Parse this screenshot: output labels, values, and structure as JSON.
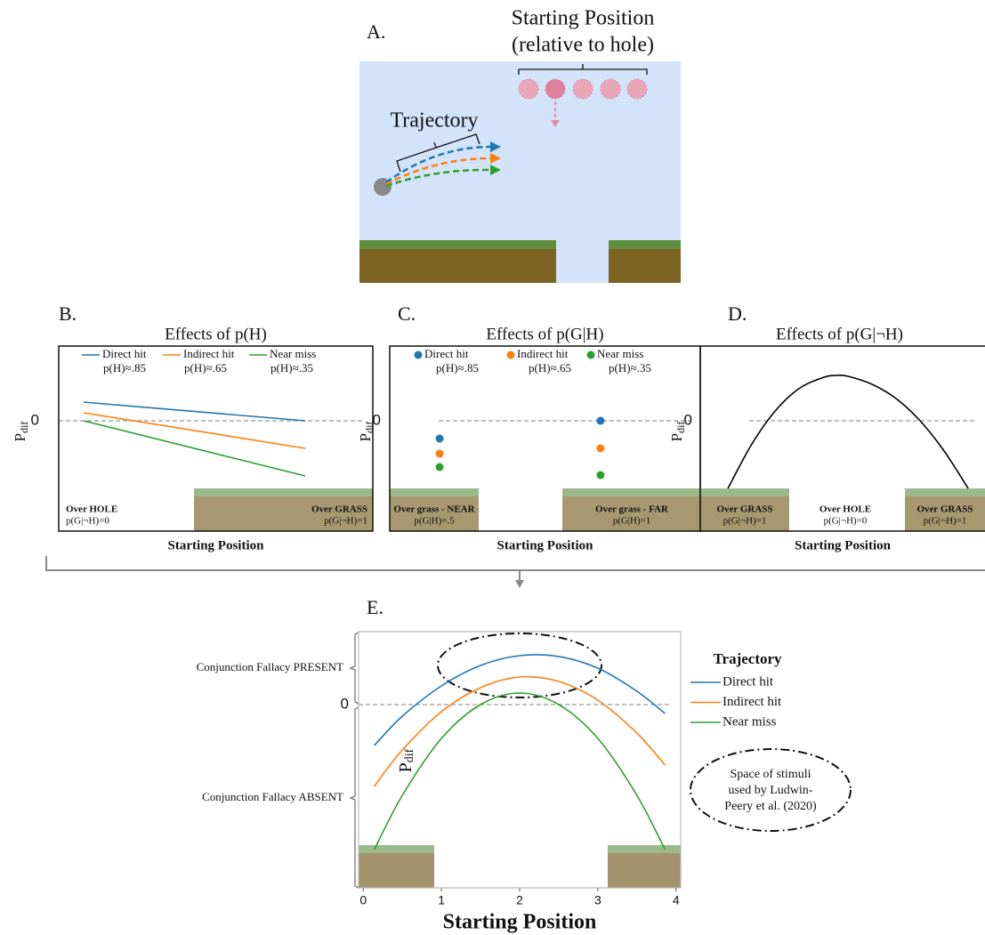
{
  "panel_a": {
    "label": "A.",
    "start_title": "Starting Position",
    "start_subtitle": "(relative to hole)",
    "trajectory_label": "Trajectory"
  },
  "chart_data": [
    {
      "type": "line",
      "panel": "B.",
      "title": "Effects of p(H)",
      "ylabel": "P",
      "ylabel_subscript": "dif",
      "xlabel": "Starting Position",
      "x": [
        0,
        1
      ],
      "xlim": [
        -0.112,
        1.305
      ],
      "ylim": [
        -1.24,
        0.84
      ],
      "yticks": [
        0
      ],
      "smooth": false,
      "legend": "top",
      "series": [
        {
          "name": "Direct hit",
          "note": "p(H)≈.85",
          "color": "#1f77b4",
          "values": [
            0.21,
            0
          ]
        },
        {
          "name": "Indirect hit",
          "note": "p(H)≈.65",
          "color": "#ff7f0e",
          "values": [
            0.09,
            -0.31
          ]
        },
        {
          "name": "Near miss",
          "note": "p(H)≈.35",
          "color": "#2ca02c",
          "values": [
            0,
            -0.62
          ]
        }
      ],
      "annotations": [
        {
          "text": "Over HOLE",
          "detail": "p(G|¬H)=0"
        },
        {
          "text": "Over GRASS",
          "detail": "p(G|¬H)=1"
        }
      ]
    },
    {
      "type": "scatter",
      "panel": "C.",
      "title": "Effects of p(G|H)",
      "ylabel": "P",
      "ylabel_subscript": "dif",
      "xlabel": "Starting Position",
      "x": [
        0,
        1
      ],
      "xlim": [
        -0.31,
        1.62
      ],
      "ylim": [
        -1.24,
        0.84
      ],
      "yticks": [
        0
      ],
      "legend": "top",
      "series": [
        {
          "name": "Direct hit",
          "note": "p(H)≈.85",
          "color": "#1f77b4",
          "values": [
            -0.2,
            0
          ]
        },
        {
          "name": "Indirect hit",
          "note": "p(H)≈.65",
          "color": "#ff7f0e",
          "values": [
            -0.37,
            -0.31
          ]
        },
        {
          "name": "Near miss",
          "note": "p(H)≈.35",
          "color": "#2ca02c",
          "values": [
            -0.52,
            -0.61
          ]
        }
      ],
      "annotations": [
        {
          "text": "Over grass - NEAR",
          "detail": "p(G|H)=.5"
        },
        {
          "text": "Over grass - FAR",
          "detail": "p(G|H)=1"
        }
      ]
    },
    {
      "type": "line",
      "panel": "D.",
      "title": "Effects of p(G|¬H)",
      "ylabel": "P",
      "ylabel_subscript": "dif",
      "xlabel": "Starting Position",
      "x": [
        0,
        0.1,
        0.2,
        0.3,
        0.4,
        0.45,
        0.5,
        0.6,
        0.7,
        0.8,
        0.9,
        1
      ],
      "xlim": [
        -0.115,
        1.07
      ],
      "ylim": [
        -1.24,
        0.84
      ],
      "yticks": [
        0
      ],
      "smooth": true,
      "series": [
        {
          "color": "#000000",
          "values": [
            -0.76,
            -0.26,
            0.12,
            0.37,
            0.49,
            0.51,
            0.5,
            0.41,
            0.25,
            0,
            -0.34,
            -0.76
          ]
        }
      ],
      "annotations": [
        {
          "text": "Over GRASS",
          "detail": "p(G|¬H)=1"
        },
        {
          "text": "Over HOLE",
          "detail": "p(G|¬H)=0"
        },
        {
          "text": "Over GRASS",
          "detail": "p(G|¬H)=1"
        }
      ]
    },
    {
      "type": "line",
      "panel": "E.",
      "ylabel": "P",
      "ylabel_subscript": "dif",
      "xlabel": "Starting Position",
      "x": [
        0.14,
        0.5,
        1,
        1.5,
        2,
        2.5,
        3,
        3.5,
        3.86
      ],
      "xlim": [
        -0.06,
        4.06
      ],
      "xticks": [
        0,
        1,
        2,
        3,
        4
      ],
      "ylim": [
        -2.06,
        0.82
      ],
      "yticks": [
        0
      ],
      "smooth": true,
      "legend": "right",
      "legend_title": "Trajectory",
      "series": [
        {
          "name": "Direct hit",
          "color": "#1f77b4",
          "values": [
            -0.46,
            -0.13,
            0.21,
            0.44,
            0.55,
            0.54,
            0.41,
            0.15,
            -0.1
          ]
        },
        {
          "name": "Indirect hit",
          "color": "#ff7f0e",
          "values": [
            -0.92,
            -0.51,
            -0.08,
            0.19,
            0.31,
            0.26,
            0.05,
            -0.32,
            -0.68
          ]
        },
        {
          "name": "Near miss",
          "color": "#2ca02c",
          "values": [
            -1.63,
            -1.02,
            -0.38,
            0,
            0.13,
            0,
            -0.38,
            -1.02,
            -1.63
          ]
        }
      ],
      "annotations": [
        {
          "text": "Conjunction Fallacy PRESENT"
        },
        {
          "text": "Conjunction Fallacy ABSENT"
        }
      ],
      "note_lines": [
        "Space of stimuli",
        "used by Ludwin-",
        "Peery et al. (2020)"
      ]
    }
  ]
}
